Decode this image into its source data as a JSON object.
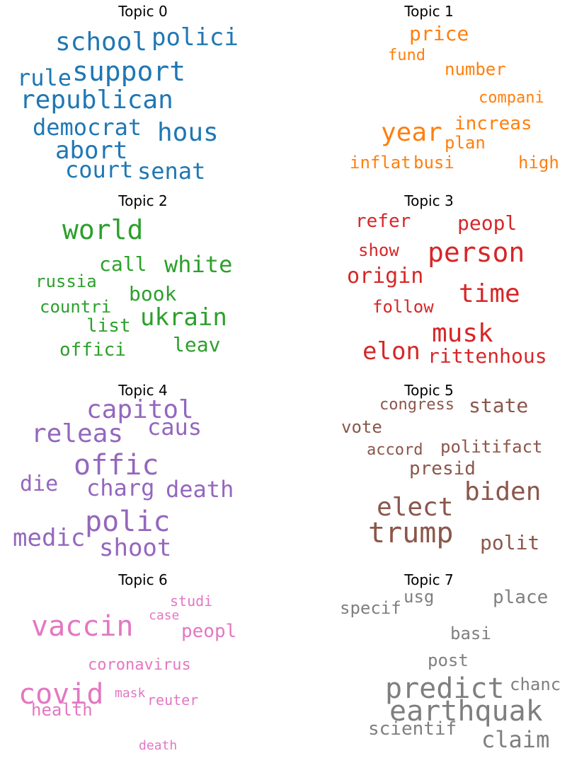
{
  "topics": [
    {
      "title": "Topic 0",
      "color": "#1f77b4",
      "words": [
        "school",
        "polici",
        "support",
        "rule",
        "republican",
        "democrat",
        "hous",
        "abort",
        "court",
        "senat"
      ]
    },
    {
      "title": "Topic 1",
      "color": "#ff7f0e",
      "words": [
        "price",
        "fund",
        "number",
        "compani",
        "year",
        "increas",
        "plan",
        "inflat",
        "busi",
        "high"
      ]
    },
    {
      "title": "Topic 2",
      "color": "#2ca02c",
      "words": [
        "world",
        "call",
        "white",
        "russia",
        "book",
        "countri",
        "ukrain",
        "list",
        "leav",
        "offici"
      ]
    },
    {
      "title": "Topic 3",
      "color": "#d62728",
      "words": [
        "refer",
        "peopl",
        "show",
        "person",
        "origin",
        "time",
        "follow",
        "musk",
        "elon",
        "rittenhous"
      ]
    },
    {
      "title": "Topic 4",
      "color": "#9467bd",
      "words": [
        "capitol",
        "releas",
        "caus",
        "offic",
        "die",
        "charg",
        "death",
        "polic",
        "medic",
        "shoot"
      ]
    },
    {
      "title": "Topic 5",
      "color": "#8c564b",
      "words": [
        "congress",
        "state",
        "vote",
        "accord",
        "politifact",
        "presid",
        "biden",
        "elect",
        "trump",
        "polit"
      ]
    },
    {
      "title": "Topic 6",
      "color": "#e377c2",
      "words": [
        "studi",
        "case",
        "vaccin",
        "peopl",
        "coronavirus",
        "covid",
        "mask",
        "reuter",
        "health",
        "death"
      ]
    },
    {
      "title": "Topic 7",
      "color": "#7f7f7f",
      "words": [
        "usg",
        "place",
        "specif",
        "basi",
        "post",
        "predict",
        "chanc",
        "earthquak",
        "scientif",
        "claim"
      ]
    }
  ]
}
